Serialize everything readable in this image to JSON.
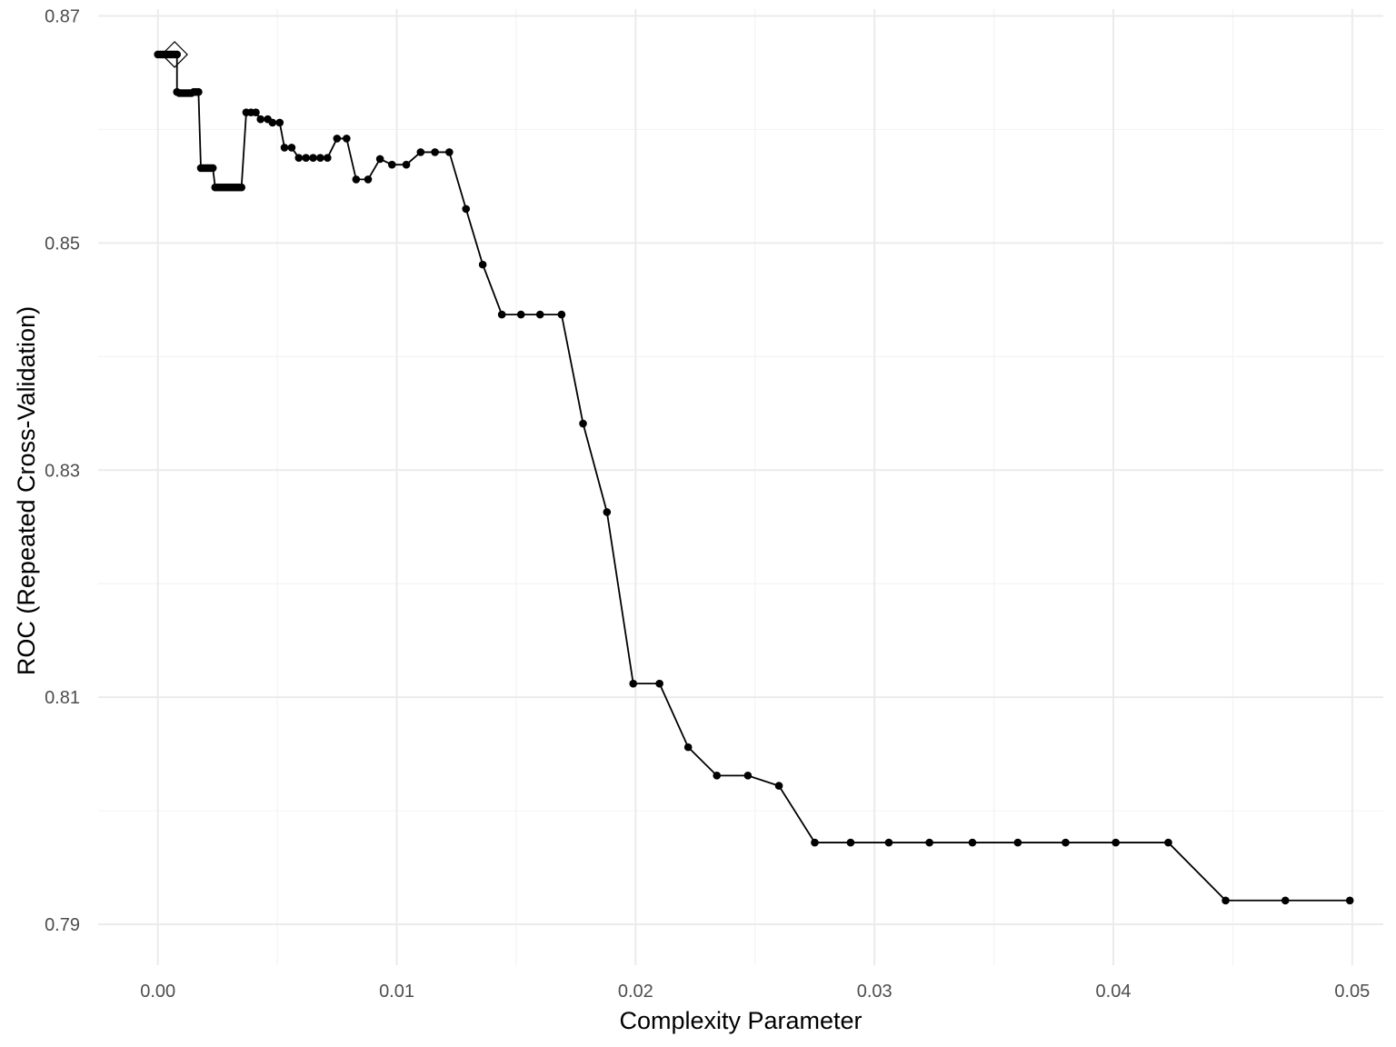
{
  "chart_data": {
    "type": "line",
    "xlabel": "Complexity Parameter",
    "ylabel": "ROC (Repeated Cross-Validation)",
    "xlim": [
      -0.0025,
      0.0513
    ],
    "ylim": [
      0.7864,
      0.8706
    ],
    "x_ticks": [
      0.0,
      0.01,
      0.02,
      0.03,
      0.04,
      0.05
    ],
    "x_tick_labels": [
      "0.00",
      "0.01",
      "0.02",
      "0.03",
      "0.04",
      "0.05"
    ],
    "y_ticks": [
      0.79,
      0.81,
      0.83,
      0.85,
      0.87
    ],
    "y_tick_labels": [
      "0.79",
      "0.81",
      "0.83",
      "0.85",
      "0.87"
    ],
    "grid": true,
    "series": [
      {
        "x": [
          0.0,
          0.0001,
          0.0002,
          0.0003,
          0.0004,
          0.0005,
          0.0006,
          0.0007,
          0.0008,
          0.0008,
          0.0009,
          0.001,
          0.0011,
          0.0012,
          0.0013,
          0.0014,
          0.0015,
          0.0016,
          0.0017,
          0.0018,
          0.0019,
          0.002,
          0.0021,
          0.0022,
          0.0023,
          0.0024,
          0.0025,
          0.0026,
          0.0027,
          0.0028,
          0.0029,
          0.003,
          0.0031,
          0.0032,
          0.0033,
          0.0034,
          0.0035,
          0.0037,
          0.0039,
          0.0041,
          0.0043,
          0.0046,
          0.0048,
          0.0051,
          0.0053,
          0.0056,
          0.0059,
          0.0062,
          0.0065,
          0.0068,
          0.0071,
          0.0075,
          0.0079,
          0.0083,
          0.0088,
          0.0093,
          0.0098,
          0.0104,
          0.011,
          0.0116,
          0.0122,
          0.0129,
          0.0136,
          0.0144,
          0.0152,
          0.016,
          0.0169,
          0.0178,
          0.0188,
          0.0199,
          0.021,
          0.0222,
          0.0234,
          0.0247,
          0.026,
          0.0275,
          0.029,
          0.0306,
          0.0323,
          0.0341,
          0.036,
          0.038,
          0.0401,
          0.0423,
          0.0447,
          0.0472,
          0.0499
        ],
        "y": [
          0.8666,
          0.8666,
          0.8666,
          0.8666,
          0.8666,
          0.8666,
          0.8666,
          0.8666,
          0.8666,
          0.8633,
          0.8632,
          0.8632,
          0.8632,
          0.8632,
          0.8632,
          0.8632,
          0.8633,
          0.8633,
          0.8633,
          0.8566,
          0.8566,
          0.8566,
          0.8566,
          0.8566,
          0.8566,
          0.8549,
          0.8549,
          0.8549,
          0.8549,
          0.8549,
          0.8549,
          0.8549,
          0.8549,
          0.8549,
          0.8549,
          0.8549,
          0.8549,
          0.8615,
          0.8615,
          0.8615,
          0.8609,
          0.8609,
          0.8606,
          0.8606,
          0.8584,
          0.8584,
          0.8575,
          0.8575,
          0.8575,
          0.8575,
          0.8575,
          0.8592,
          0.8592,
          0.8556,
          0.8556,
          0.8574,
          0.8569,
          0.8569,
          0.858,
          0.858,
          0.858,
          0.853,
          0.8481,
          0.8437,
          0.8437,
          0.8437,
          0.8437,
          0.8341,
          0.8263,
          0.8112,
          0.8112,
          0.8056,
          0.8031,
          0.8031,
          0.8022,
          0.7972,
          0.7972,
          0.7972,
          0.7972,
          0.7972,
          0.7972,
          0.7972,
          0.7972,
          0.7972,
          0.7921,
          0.7921,
          0.7921
        ]
      }
    ],
    "highlight": {
      "shape": "diamond",
      "x": 0.0007,
      "y": 0.8666
    }
  }
}
